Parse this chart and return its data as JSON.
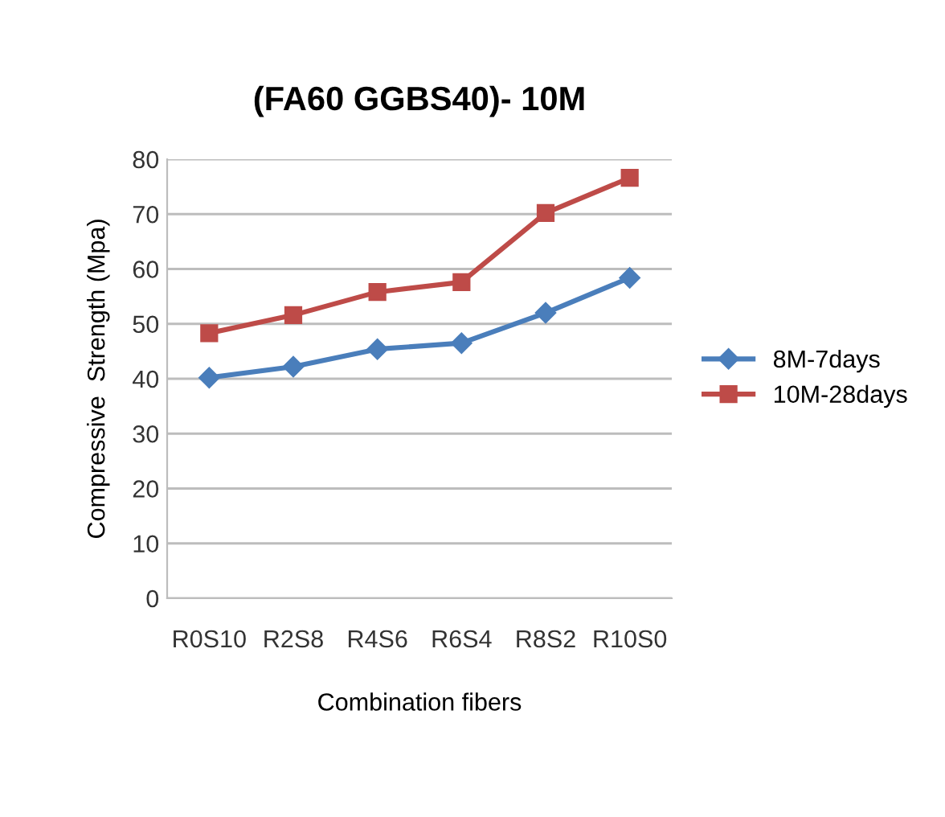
{
  "chart_data": {
    "type": "line",
    "title": "(FA60 GGBS40)- 10M",
    "xlabel": "Combination fibers",
    "ylabel": "Compressive  Strength (Mpa)",
    "categories": [
      "R0S10",
      "R2S8",
      "R4S6",
      "R6S4",
      "R8S2",
      "R10S0"
    ],
    "series": [
      {
        "name": "8M-7days",
        "color": "#4a7ebb",
        "marker": "diamond",
        "values": [
          40.2,
          42.2,
          45.4,
          46.5,
          52,
          58.4
        ]
      },
      {
        "name": "10M-28days",
        "color": "#be4b48",
        "marker": "square",
        "values": [
          48.3,
          51.6,
          55.8,
          57.6,
          70.2,
          76.6
        ]
      }
    ],
    "ylim": [
      0,
      80
    ],
    "yticks": [
      0,
      10,
      20,
      30,
      40,
      50,
      60,
      70,
      80
    ],
    "grid": "y",
    "legend": "right"
  }
}
